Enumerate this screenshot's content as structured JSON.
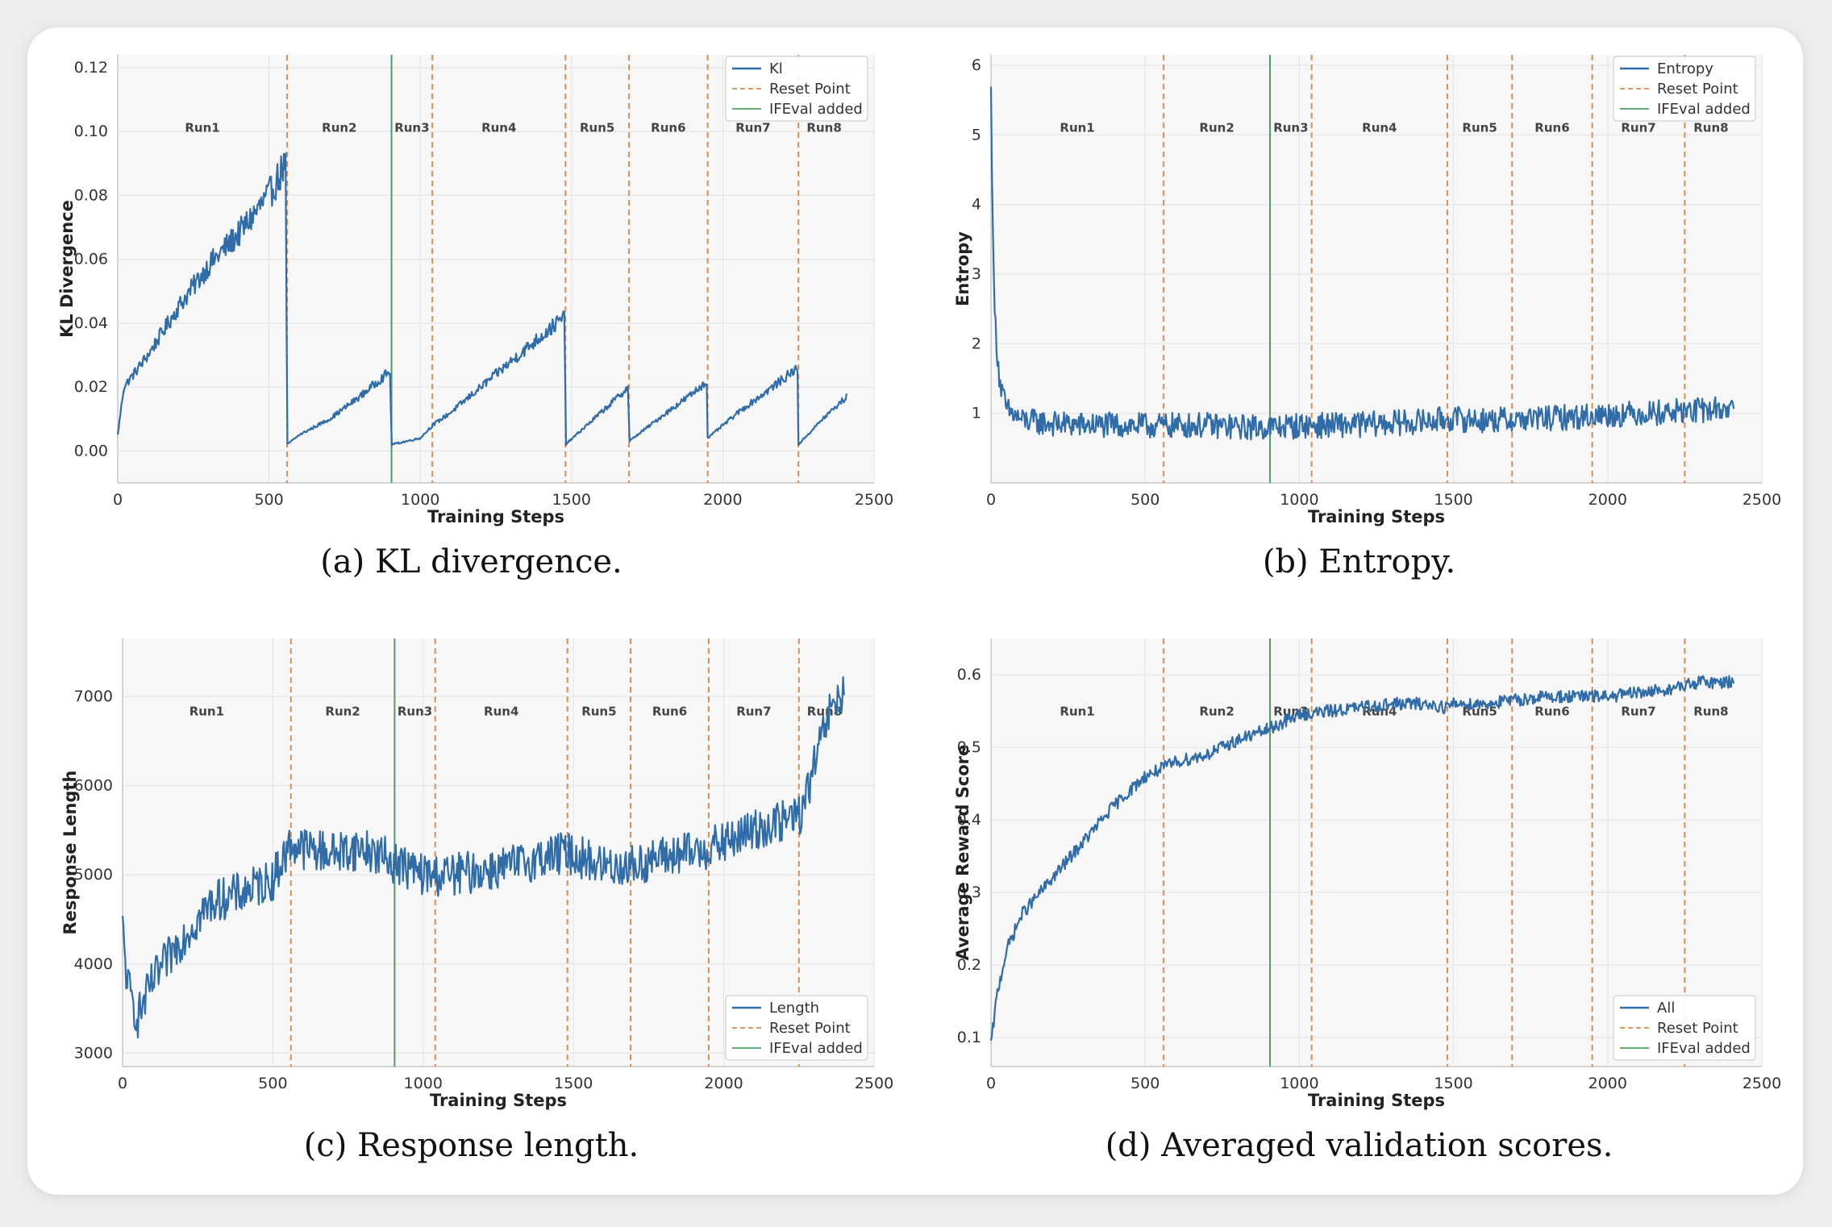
{
  "captions": [
    "(a) KL divergence.",
    "(b) Entropy.",
    "(c) Response length.",
    "(d) Averaged validation scores."
  ],
  "colors": {
    "series": "#2f6ca8",
    "reset": "#e08a4c",
    "ifeval": "#4f9d65"
  },
  "chart_data": [
    {
      "type": "line",
      "xlabel": "Training Steps",
      "ylabel": "KL Divergence",
      "xlim": [
        0,
        2500
      ],
      "ylim": [
        -0.01,
        0.124
      ],
      "xticks": [
        0,
        500,
        1000,
        1500,
        2000,
        2500
      ],
      "yticks": [
        0.0,
        0.02,
        0.04,
        0.06,
        0.08,
        0.1,
        0.12
      ],
      "ytick_labels": [
        "0.00",
        "0.02",
        "0.04",
        "0.06",
        "0.08",
        "0.10",
        "0.12"
      ],
      "series_name": "Kl",
      "legend": [
        "Kl",
        "Reset Point",
        "IFEval added"
      ],
      "legend_position": "top-right",
      "reset_points": [
        560,
        1040,
        1480,
        1690,
        1950,
        2250
      ],
      "ifeval_step": 905,
      "run_labels": [
        "Run1",
        "Run2",
        "Run3",
        "Run4",
        "Run5",
        "Run6",
        "Run7",
        "Run8"
      ],
      "noise": 0.13,
      "points": [
        [
          0,
          0.005
        ],
        [
          20,
          0.02
        ],
        [
          100,
          0.03
        ],
        [
          200,
          0.045
        ],
        [
          300,
          0.058
        ],
        [
          400,
          0.068
        ],
        [
          500,
          0.08
        ],
        [
          555,
          0.09
        ],
        [
          560,
          0.002
        ],
        [
          600,
          0.005
        ],
        [
          700,
          0.01
        ],
        [
          800,
          0.017
        ],
        [
          900,
          0.025
        ],
        [
          905,
          0.002
        ],
        [
          1000,
          0.004
        ],
        [
          1040,
          0.008
        ],
        [
          1100,
          0.012
        ],
        [
          1200,
          0.02
        ],
        [
          1300,
          0.028
        ],
        [
          1400,
          0.036
        ],
        [
          1478,
          0.042
        ],
        [
          1480,
          0.002
        ],
        [
          1550,
          0.008
        ],
        [
          1620,
          0.014
        ],
        [
          1688,
          0.02
        ],
        [
          1690,
          0.003
        ],
        [
          1800,
          0.011
        ],
        [
          1900,
          0.018
        ],
        [
          1948,
          0.022
        ],
        [
          1950,
          0.004
        ],
        [
          2050,
          0.012
        ],
        [
          2150,
          0.019
        ],
        [
          2248,
          0.026
        ],
        [
          2250,
          0.002
        ],
        [
          2330,
          0.01
        ],
        [
          2410,
          0.017
        ]
      ]
    },
    {
      "type": "line",
      "xlabel": "Training Steps",
      "ylabel": "Entropy",
      "xlim": [
        0,
        2500
      ],
      "ylim": [
        0.0,
        6.15
      ],
      "xticks": [
        0,
        500,
        1000,
        1500,
        2000,
        2500
      ],
      "yticks": [
        1,
        2,
        3,
        4,
        5,
        6
      ],
      "ytick_labels": [
        "1",
        "2",
        "3",
        "4",
        "5",
        "6"
      ],
      "series_name": "Entropy",
      "legend": [
        "Entropy",
        "Reset Point",
        "IFEval added"
      ],
      "legend_position": "top-right",
      "reset_points": [
        560,
        1040,
        1480,
        1690,
        1950,
        2250
      ],
      "ifeval_step": 905,
      "run_labels": [
        "Run1",
        "Run2",
        "Run3",
        "Run4",
        "Run5",
        "Run6",
        "Run7",
        "Run8"
      ],
      "noise": 0.03,
      "points": [
        [
          0,
          5.6
        ],
        [
          10,
          2.6
        ],
        [
          20,
          1.9
        ],
        [
          30,
          1.4
        ],
        [
          50,
          1.05
        ],
        [
          100,
          0.9
        ],
        [
          200,
          0.85
        ],
        [
          300,
          0.83
        ],
        [
          400,
          0.83
        ],
        [
          500,
          0.82
        ],
        [
          700,
          0.83
        ],
        [
          800,
          0.8
        ],
        [
          900,
          0.8
        ],
        [
          1000,
          0.82
        ],
        [
          1100,
          0.83
        ],
        [
          1200,
          0.84
        ],
        [
          1300,
          0.86
        ],
        [
          1400,
          0.88
        ],
        [
          1480,
          0.92
        ],
        [
          1500,
          0.92
        ],
        [
          1600,
          0.9
        ],
        [
          1700,
          0.91
        ],
        [
          1800,
          0.93
        ],
        [
          1900,
          0.95
        ],
        [
          2000,
          0.98
        ],
        [
          2100,
          1.0
        ],
        [
          2200,
          1.02
        ],
        [
          2300,
          1.04
        ],
        [
          2410,
          1.08
        ]
      ]
    },
    {
      "type": "line",
      "xlabel": "Training Steps",
      "ylabel": "Response Length",
      "xlim": [
        0,
        2500
      ],
      "ylim": [
        2850,
        7650
      ],
      "xticks": [
        0,
        500,
        1000,
        1500,
        2000,
        2500
      ],
      "yticks": [
        3000,
        4000,
        5000,
        6000,
        7000
      ],
      "ytick_labels": [
        "3000",
        "4000",
        "5000",
        "6000",
        "7000"
      ],
      "series_name": "Length",
      "legend": [
        "Length",
        "Reset Point",
        "IFEval added"
      ],
      "legend_position": "bottom-right",
      "reset_points": [
        560,
        1040,
        1480,
        1690,
        1950,
        2250
      ],
      "ifeval_step": 905,
      "run_labels": [
        "Run1",
        "Run2",
        "Run3",
        "Run4",
        "Run5",
        "Run6",
        "Run7",
        "Run8"
      ],
      "noise": 0.05,
      "points": [
        [
          0,
          4400
        ],
        [
          15,
          3800
        ],
        [
          30,
          3600
        ],
        [
          50,
          3400
        ],
        [
          100,
          3800
        ],
        [
          200,
          4300
        ],
        [
          300,
          4700
        ],
        [
          400,
          4800
        ],
        [
          500,
          4950
        ],
        [
          560,
          5350
        ],
        [
          600,
          5300
        ],
        [
          700,
          5250
        ],
        [
          800,
          5300
        ],
        [
          900,
          5150
        ],
        [
          1000,
          5000
        ],
        [
          1100,
          5000
        ],
        [
          1200,
          5050
        ],
        [
          1300,
          5100
        ],
        [
          1400,
          5200
        ],
        [
          1480,
          5250
        ],
        [
          1600,
          5100
        ],
        [
          1700,
          5100
        ],
        [
          1800,
          5200
        ],
        [
          1900,
          5250
        ],
        [
          2000,
          5350
        ],
        [
          2100,
          5500
        ],
        [
          2200,
          5600
        ],
        [
          2260,
          5700
        ],
        [
          2300,
          6200
        ],
        [
          2350,
          6800
        ],
        [
          2400,
          7050
        ]
      ]
    },
    {
      "type": "line",
      "xlabel": "Training Steps",
      "ylabel": "Average Reward Score",
      "xlim": [
        0,
        2500
      ],
      "ylim": [
        0.06,
        0.65
      ],
      "xticks": [
        0,
        500,
        1000,
        1500,
        2000,
        2500
      ],
      "yticks": [
        0.1,
        0.2,
        0.3,
        0.4,
        0.5,
        0.6
      ],
      "ytick_labels": [
        "0.1",
        "0.2",
        "0.3",
        "0.4",
        "0.5",
        "0.6"
      ],
      "series_name": "All",
      "legend": [
        "All",
        "Reset Point",
        "IFEval added"
      ],
      "legend_position": "bottom-right",
      "reset_points": [
        560,
        1040,
        1480,
        1690,
        1950,
        2250
      ],
      "ifeval_step": 905,
      "run_labels": [
        "Run1",
        "Run2",
        "Run3",
        "Run4",
        "Run5",
        "Run6",
        "Run7",
        "Run8"
      ],
      "noise": 0.015,
      "points": [
        [
          0,
          0.09
        ],
        [
          20,
          0.16
        ],
        [
          50,
          0.22
        ],
        [
          100,
          0.27
        ],
        [
          200,
          0.32
        ],
        [
          300,
          0.37
        ],
        [
          400,
          0.42
        ],
        [
          500,
          0.46
        ],
        [
          600,
          0.48
        ],
        [
          700,
          0.49
        ],
        [
          800,
          0.51
        ],
        [
          900,
          0.525
        ],
        [
          1000,
          0.545
        ],
        [
          1100,
          0.55
        ],
        [
          1200,
          0.555
        ],
        [
          1300,
          0.56
        ],
        [
          1400,
          0.56
        ],
        [
          1480,
          0.555
        ],
        [
          1500,
          0.56
        ],
        [
          1600,
          0.56
        ],
        [
          1700,
          0.565
        ],
        [
          1800,
          0.57
        ],
        [
          1900,
          0.57
        ],
        [
          2000,
          0.57
        ],
        [
          2100,
          0.575
        ],
        [
          2200,
          0.58
        ],
        [
          2300,
          0.59
        ],
        [
          2410,
          0.59
        ]
      ]
    }
  ]
}
